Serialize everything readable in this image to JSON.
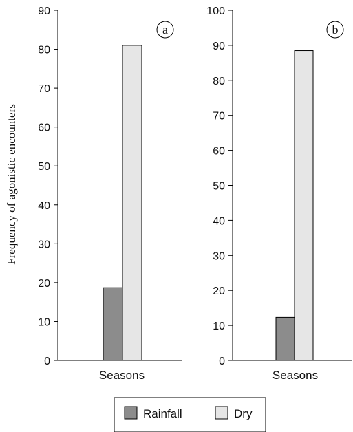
{
  "chart_data": [
    {
      "type": "bar",
      "panel_label": "a",
      "categories": [
        "Seasons"
      ],
      "xlabel": "Seasons",
      "ylabel": "Frequency of agonistic encounters",
      "ylim": [
        0,
        90
      ],
      "yticks": [
        0,
        10,
        20,
        30,
        40,
        50,
        60,
        70,
        80,
        90
      ],
      "series": [
        {
          "name": "Rainfall",
          "values": [
            18.7
          ],
          "color": "#8c8c8c"
        },
        {
          "name": "Dry",
          "values": [
            81
          ],
          "color": "#e6e6e6"
        }
      ],
      "grid": false
    },
    {
      "type": "bar",
      "panel_label": "b",
      "categories": [
        "Seasons"
      ],
      "xlabel": "Seasons",
      "ylabel": "",
      "ylim": [
        0,
        100
      ],
      "yticks": [
        0,
        10,
        20,
        30,
        40,
        50,
        60,
        70,
        80,
        90,
        100
      ],
      "series": [
        {
          "name": "Rainfall",
          "values": [
            12.3
          ],
          "color": "#8c8c8c"
        },
        {
          "name": "Dry",
          "values": [
            88.5
          ],
          "color": "#e6e6e6"
        }
      ],
      "grid": false
    }
  ],
  "legend": {
    "position": "bottom",
    "items": [
      {
        "label": "Rainfall",
        "color": "#8c8c8c"
      },
      {
        "label": "Dry",
        "color": "#e6e6e6"
      }
    ]
  }
}
